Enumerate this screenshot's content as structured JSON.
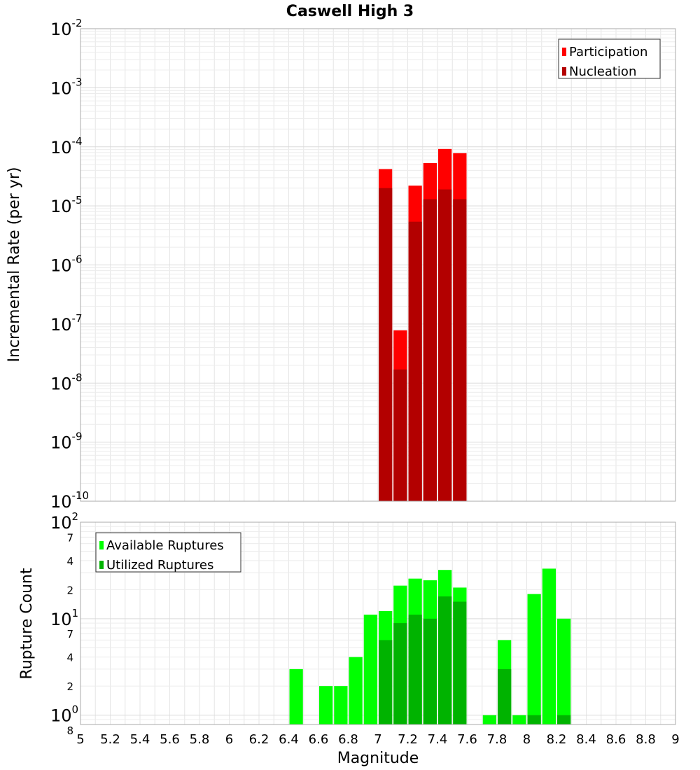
{
  "chart_data": [
    {
      "type": "bar",
      "title": "Caswell High 3",
      "xlabel": "",
      "ylabel": "Incremental Rate (per yr)",
      "yscale": "log",
      "xlim": [
        5,
        9
      ],
      "ylim": [
        1e-10,
        0.01
      ],
      "y_major_ticks": [
        {
          "base": "10",
          "exp": "-10",
          "value": 1e-10
        },
        {
          "base": "10",
          "exp": "-9",
          "value": 1e-09
        },
        {
          "base": "10",
          "exp": "-8",
          "value": 1e-08
        },
        {
          "base": "10",
          "exp": "-7",
          "value": 1e-07
        },
        {
          "base": "10",
          "exp": "-6",
          "value": 1e-06
        },
        {
          "base": "10",
          "exp": "-5",
          "value": 1e-05
        },
        {
          "base": "10",
          "exp": "-4",
          "value": 0.0001
        },
        {
          "base": "10",
          "exp": "-3",
          "value": 0.001
        },
        {
          "base": "10",
          "exp": "-2",
          "value": 0.01
        }
      ],
      "grid": true,
      "legend_position": "top-right",
      "bar_width": 0.1,
      "x": [
        7.05,
        7.15,
        7.25,
        7.35,
        7.45,
        7.55
      ],
      "series": [
        {
          "name": "Participation",
          "color": "#ff0000",
          "values": [
            4.2e-05,
            7.8e-08,
            2.2e-05,
            5.3e-05,
            9.2e-05,
            7.8e-05
          ]
        },
        {
          "name": "Nucleation",
          "color": "#b30000",
          "values": [
            2e-05,
            1.7e-08,
            5.4e-06,
            1.3e-05,
            1.9e-05,
            1.3e-05
          ]
        }
      ]
    },
    {
      "type": "bar",
      "title": "",
      "xlabel": "Magnitude",
      "ylabel": "Rupture Count",
      "yscale": "log",
      "xlim": [
        5,
        9
      ],
      "ylim": [
        0.8,
        100
      ],
      "x_ticks": [
        "5",
        "5.2",
        "5.4",
        "5.6",
        "5.8",
        "6",
        "6.2",
        "6.4",
        "6.6",
        "6.8",
        "7",
        "7.2",
        "7.4",
        "7.6",
        "7.8",
        "8",
        "8.2",
        "8.4",
        "8.6",
        "8.8",
        "9"
      ],
      "y_major_ticks": [
        {
          "base": "10",
          "exp": "2",
          "value": 100
        },
        {
          "base": "10",
          "exp": "1",
          "value": 10
        },
        {
          "base": "10",
          "exp": "0",
          "value": 1
        }
      ],
      "y_minor_ticks": [
        {
          "label": "7",
          "value": 70
        },
        {
          "label": "4",
          "value": 40
        },
        {
          "label": "2",
          "value": 20
        },
        {
          "label": "7",
          "value": 7
        },
        {
          "label": "4",
          "value": 4
        },
        {
          "label": "2",
          "value": 2
        },
        {
          "label": "8",
          "value": 0.8
        }
      ],
      "grid": true,
      "legend_position": "top-left",
      "bar_width": 0.1,
      "x": [
        6.45,
        6.65,
        6.75,
        6.85,
        6.95,
        7.05,
        7.15,
        7.25,
        7.35,
        7.45,
        7.55,
        7.75,
        7.85,
        7.95,
        8.05,
        8.15,
        8.25
      ],
      "series": [
        {
          "name": "Available Ruptures",
          "color": "#00ff00",
          "values": [
            3,
            2,
            2,
            4,
            11,
            12,
            22,
            26,
            25,
            32,
            21,
            1,
            6,
            1,
            18,
            33,
            10
          ]
        },
        {
          "name": "Utilized Ruptures",
          "color": "#00b300",
          "values": [
            0,
            0,
            0,
            0,
            0,
            6,
            9,
            11,
            10,
            17,
            15,
            0,
            3,
            0,
            1,
            0,
            1
          ]
        }
      ]
    }
  ]
}
